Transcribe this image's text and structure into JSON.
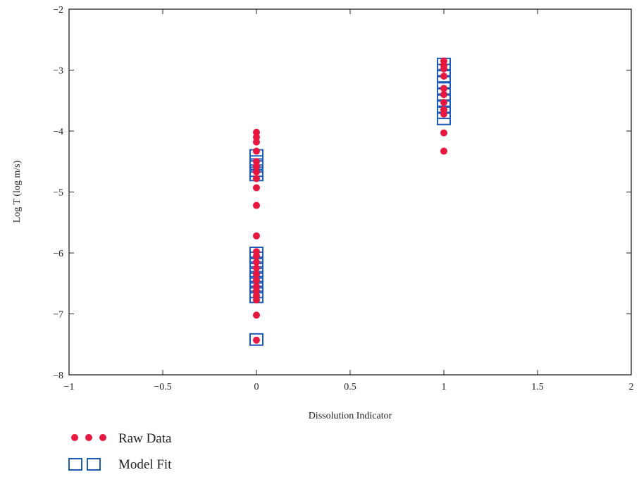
{
  "chart_data": {
    "type": "scatter",
    "xlabel": "Dissolution Indicator",
    "ylabel": "Log T (log m/s)",
    "xlim": [
      -1,
      2
    ],
    "ylim": [
      -8,
      -2
    ],
    "x_ticks": [
      -1,
      -0.5,
      0,
      0.5,
      1,
      1.5,
      2
    ],
    "y_ticks": [
      -2,
      -3,
      -4,
      -5,
      -6,
      -7,
      -8
    ],
    "x_tick_labels": [
      "−1",
      "−0.5",
      "0",
      "0.5",
      "1",
      "1.5",
      "2"
    ],
    "y_tick_labels": [
      "−2",
      "−3",
      "−4",
      "−5",
      "−6",
      "−7",
      "−8"
    ],
    "grid": false,
    "legend_position": "bottom-left",
    "series": [
      {
        "name": "Raw Data",
        "marker": "circle",
        "color": "#e8173f",
        "x": [
          0,
          0,
          0,
          0,
          0,
          0,
          0,
          0,
          0,
          0,
          0,
          0,
          0,
          0,
          0,
          0,
          0,
          0,
          0,
          0,
          0,
          0,
          0,
          1,
          1,
          1,
          1,
          1,
          1,
          1,
          1,
          1,
          1,
          1
        ],
        "y": [
          -4.02,
          -4.1,
          -4.33,
          -4.5,
          -4.58,
          -4.67,
          -4.93,
          -5.22,
          -5.72,
          -5.98,
          -6.05,
          -6.15,
          -6.25,
          -6.35,
          -6.45,
          -6.55,
          -6.62,
          -6.7,
          -6.77,
          -7.02,
          -7.43,
          -4.18,
          -4.78,
          -2.85,
          -2.92,
          -2.98,
          -3.3,
          -3.4,
          -3.53,
          -3.65,
          -3.72,
          -4.03,
          -4.33,
          -3.1
        ]
      },
      {
        "name": "Model Fit",
        "marker": "square",
        "color": "#1f5bb8",
        "x": [
          0,
          0,
          0,
          0,
          0,
          0,
          0,
          0,
          0,
          0,
          0,
          0,
          0,
          0,
          0,
          0,
          0,
          1,
          1,
          1,
          1,
          1,
          1,
          1,
          1,
          1,
          1
        ],
        "y": [
          -4.4,
          -4.5,
          -4.58,
          -4.65,
          -4.72,
          -6.0,
          -6.08,
          -6.16,
          -6.24,
          -6.32,
          -6.4,
          -6.48,
          -6.56,
          -6.64,
          -6.72,
          -7.42,
          -4.55,
          -2.9,
          -3.0,
          -3.1,
          -3.2,
          -3.3,
          -3.4,
          -3.5,
          -3.6,
          -3.7,
          -3.8
        ]
      }
    ]
  }
}
